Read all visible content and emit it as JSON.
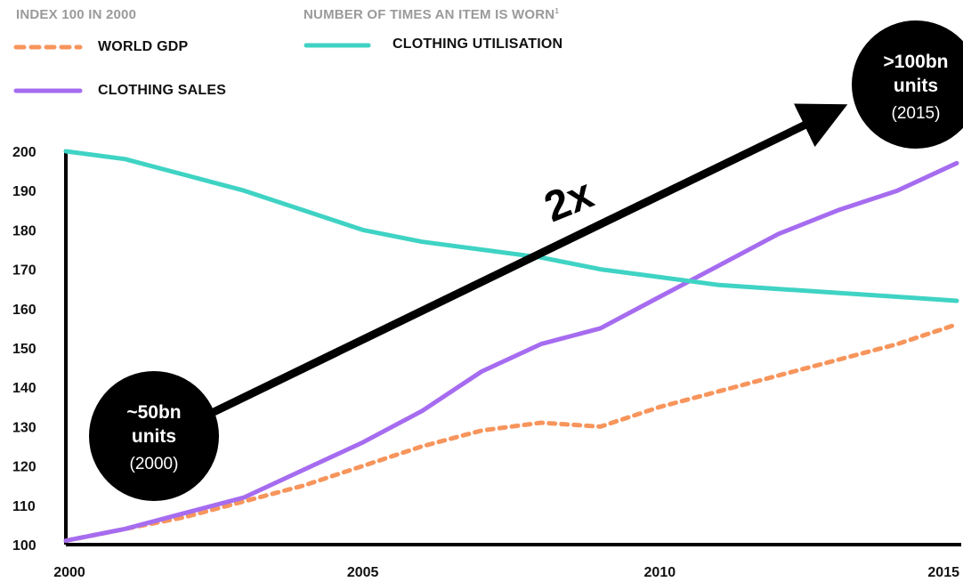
{
  "legend": {
    "left_heading": "INDEX 100 IN 2000",
    "right_heading": "NUMBER OF TIMES AN ITEM IS WORN",
    "right_heading_footnote": "1",
    "items": [
      {
        "label": "WORLD GDP",
        "color": "#f7955c",
        "style": "dashed"
      },
      {
        "label": "CLOTHING SALES",
        "color": "#a66cf0",
        "style": "solid"
      },
      {
        "label": "CLOTHING UTILISATION",
        "color": "#3fd3c4",
        "style": "solid"
      }
    ]
  },
  "annotations": {
    "multiplier": "2x",
    "start_bubble": {
      "line1": "~50bn",
      "line2": "units",
      "line3": "(2000)"
    },
    "end_bubble": {
      "line1": ">100bn",
      "line2": "units",
      "line3": "(2015)"
    }
  },
  "chart_data": {
    "type": "line",
    "x": [
      2000,
      2001,
      2002,
      2003,
      2004,
      2005,
      2006,
      2007,
      2008,
      2009,
      2010,
      2011,
      2012,
      2013,
      2014,
      2015
    ],
    "x_ticks": [
      "2000",
      "2005",
      "2010",
      "2015"
    ],
    "y_ticks": [
      "100",
      "110",
      "120",
      "130",
      "140",
      "150",
      "160",
      "170",
      "180",
      "190",
      "200"
    ],
    "ylim": [
      100,
      200
    ],
    "xlim": [
      2000,
      2015
    ],
    "series": [
      {
        "name": "WORLD GDP",
        "color": "#f7955c",
        "dashed": true,
        "values": [
          101,
          104,
          107,
          111,
          115,
          120,
          125,
          129,
          131,
          130,
          135,
          139,
          143,
          147,
          151,
          156
        ]
      },
      {
        "name": "CLOTHING SALES",
        "color": "#a66cf0",
        "dashed": false,
        "values": [
          101,
          104,
          108,
          112,
          119,
          126,
          134,
          144,
          151,
          155,
          163,
          171,
          179,
          185,
          190,
          197
        ]
      },
      {
        "name": "CLOTHING UTILISATION",
        "color": "#3fd3c4",
        "dashed": false,
        "values": [
          200,
          198,
          194,
          190,
          185,
          180,
          177,
          175,
          173,
          170,
          168,
          166,
          165,
          164,
          163,
          162
        ]
      }
    ]
  }
}
